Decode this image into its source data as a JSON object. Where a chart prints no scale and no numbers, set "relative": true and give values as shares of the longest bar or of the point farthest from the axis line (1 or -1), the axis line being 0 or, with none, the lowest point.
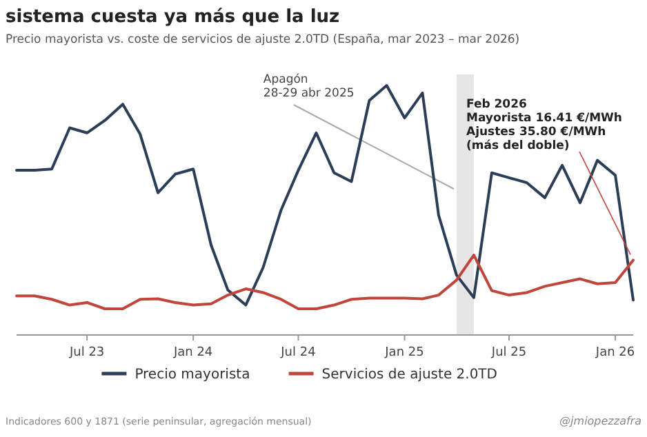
{
  "chart_data": {
    "type": "line",
    "title": "sistema cuesta ya más que la luz",
    "subtitle": "Precio mayorista vs. coste de servicios de ajuste 2.0TD (España, mar 2023 – mar 2026)",
    "relative": true,
    "x": [
      "2023-03",
      "2023-04",
      "2023-05",
      "2023-06",
      "2023-07",
      "2023-08",
      "2023-09",
      "2023-10",
      "2023-11",
      "2023-12",
      "2024-01",
      "2024-02",
      "2024-03",
      "2024-04",
      "2024-05",
      "2024-06",
      "2024-07",
      "2024-08",
      "2024-09",
      "2024-10",
      "2024-11",
      "2024-12",
      "2025-01",
      "2025-02",
      "2025-03",
      "2025-04",
      "2025-05",
      "2025-06",
      "2025-07",
      "2025-08",
      "2025-09",
      "2025-10",
      "2025-11",
      "2025-12",
      "2026-01",
      "2026-02"
    ],
    "xlim": [
      "2023-03",
      "2026-02"
    ],
    "xticks": [
      {
        "value": "2023-07",
        "label": "Jul 23"
      },
      {
        "value": "2024-01",
        "label": "Jan 24"
      },
      {
        "value": "2024-07",
        "label": "Jul 24"
      },
      {
        "value": "2025-01",
        "label": "Jan 25"
      },
      {
        "value": "2025-07",
        "label": "Jul 25"
      },
      {
        "value": "2026-01",
        "label": "Jan 26"
      }
    ],
    "series": [
      {
        "name": "Precio mayorista",
        "color": "#2c3e57",
        "values": [
          0.66,
          0.66,
          0.665,
          0.83,
          0.81,
          0.86,
          0.925,
          0.805,
          0.57,
          0.645,
          0.665,
          0.36,
          0.18,
          0.12,
          0.27,
          0.5,
          0.66,
          0.81,
          0.65,
          0.615,
          0.94,
          1,
          0.87,
          0.97,
          0.48,
          0.24,
          0.15,
          0.65,
          0.63,
          0.61,
          0.55,
          0.68,
          0.53,
          0.7,
          0.64,
          0.14
        ]
      },
      {
        "name": "Servicios de ajuste 2.0TD",
        "color": "#c0463c",
        "values": [
          0.157,
          0.157,
          0.143,
          0.12,
          0.13,
          0.105,
          0.105,
          0.143,
          0.145,
          0.13,
          0.12,
          0.125,
          0.16,
          0.185,
          0.17,
          0.143,
          0.105,
          0.105,
          0.12,
          0.143,
          0.148,
          0.148,
          0.148,
          0.145,
          0.16,
          0.22,
          0.32,
          0.178,
          0.16,
          0.17,
          0.195,
          0.21,
          0.225,
          0.205,
          0.21,
          0.3
        ]
      }
    ],
    "bands": [
      {
        "axis": "x",
        "from": "2025-04-01",
        "to": "2025-05-01",
        "label": "Apagón\n28-29 abr 2025",
        "color": "#e6e6e6"
      }
    ],
    "annotations": [
      "Feb 2026\nMayorista 16.41 €/MWh\nAjustes 35.80 €/MWh\n(más del doble)",
      "Indicadores 600 y 1871 (serie peninsular, agregación mensual)",
      "@jmiopezzafra"
    ],
    "legend": "bottom",
    "line_style": "solid",
    "marker": "none"
  }
}
